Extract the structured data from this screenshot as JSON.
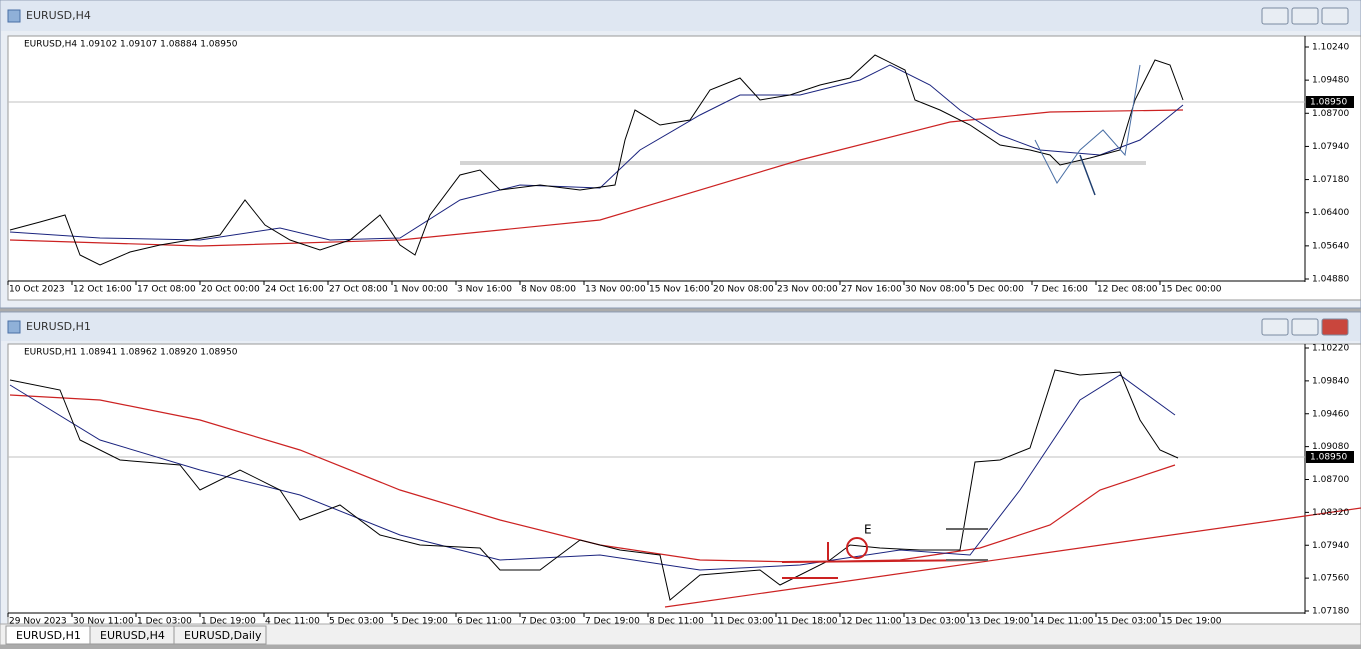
{
  "windows": [
    {
      "title": "EURUSD,H4",
      "info": "EURUSD,H4  1.09102 1.09107 1.08884 1.08950",
      "price_labels": [
        "1.10240",
        "1.09480",
        "1.08700",
        "1.07940",
        "1.07180",
        "1.06400",
        "1.05640",
        "1.04880"
      ],
      "current_price": "1.08950",
      "time_labels": [
        "10 Oct 2023",
        "12 Oct 16:00",
        "17 Oct 08:00",
        "20 Oct 00:00",
        "24 Oct 16:00",
        "27 Oct 08:00",
        "1 Nov 00:00",
        "3 Nov 16:00",
        "8 Nov 08:00",
        "13 Nov 00:00",
        "15 Nov 16:00",
        "20 Nov 08:00",
        "23 Nov 00:00",
        "27 Nov 16:00",
        "30 Nov 08:00",
        "5 Dec 00:00",
        "7 Dec 16:00",
        "12 Dec 08:00",
        "15 Dec 00:00"
      ]
    },
    {
      "title": "EURUSD,H1",
      "info": "EURUSD,H1  1.08941 1.08962 1.08920 1.08950",
      "price_labels": [
        "1.10220",
        "1.09840",
        "1.09460",
        "1.09080",
        "1.08700",
        "1.08320",
        "1.07940",
        "1.07560",
        "1.07180"
      ],
      "current_price": "1.08950",
      "time_labels": [
        "29 Nov 2023",
        "30 Nov 11:00",
        "1 Dec 03:00",
        "1 Dec 19:00",
        "4 Dec 11:00",
        "5 Dec 03:00",
        "5 Dec 19:00",
        "6 Dec 11:00",
        "7 Dec 03:00",
        "7 Dec 19:00",
        "8 Dec 11:00",
        "11 Dec 03:00",
        "11 Dec 18:00",
        "12 Dec 11:00",
        "13 Dec 03:00",
        "13 Dec 19:00",
        "14 Dec 11:00",
        "15 Dec 03:00",
        "15 Dec 19:00"
      ],
      "annotation": "E"
    }
  ],
  "tabs": [
    "EURUSD,H1",
    "EURUSD,H4",
    "EURUSD,Daily"
  ]
}
